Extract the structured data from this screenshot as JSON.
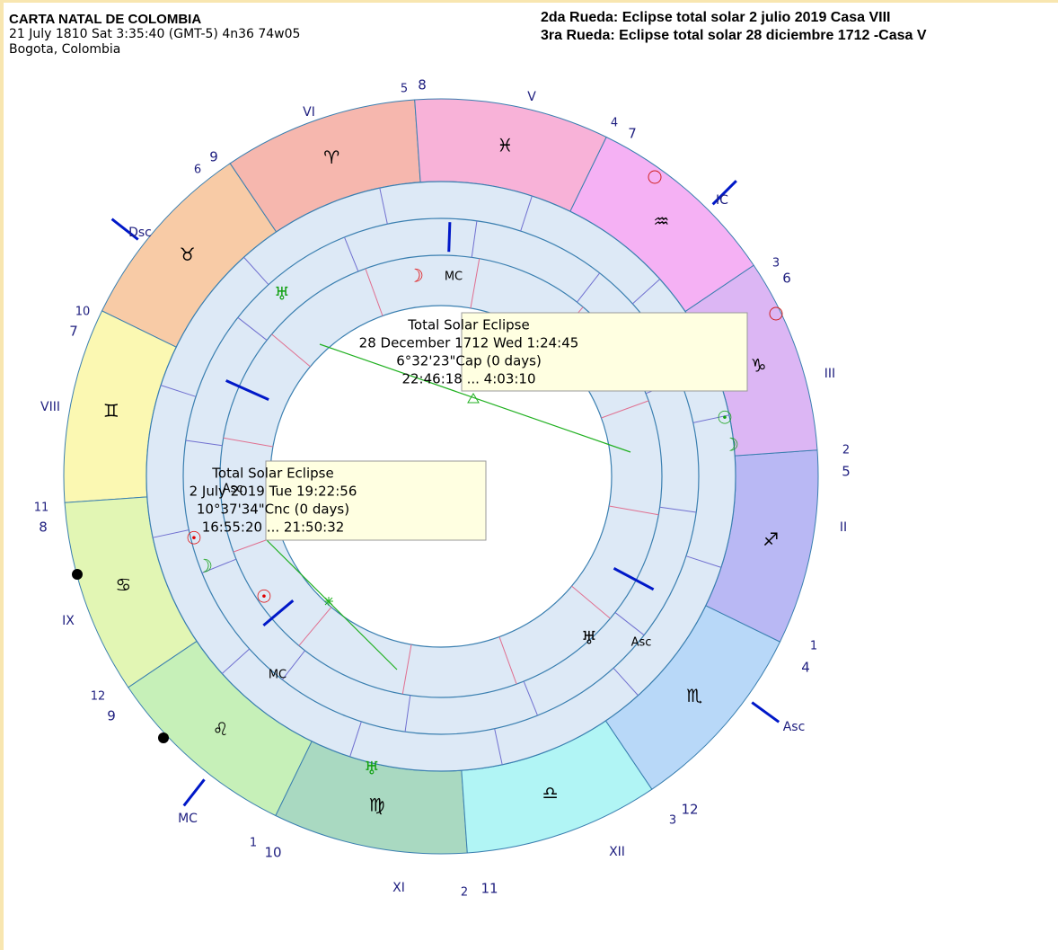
{
  "header": {
    "title": "CARTA NATAL DE COLOMBIA",
    "line1": "21 July 1810  Sat   3:35:40 (GMT-5) 4n36  74w05",
    "line2": "Bogota, Colombia",
    "wheel2": "2da Rueda: Eclipse total solar 2 julio 2019 Casa VIII",
    "wheel3": "3ra Rueda: Eclipse total solar 28 diciembre 1712 -Casa V"
  },
  "signs": [
    {
      "glyph": "♈",
      "color": "#f6b7ae"
    },
    {
      "glyph": "♉",
      "color": "#f8cba6"
    },
    {
      "glyph": "♊",
      "color": "#fbf8b2"
    },
    {
      "glyph": "♋",
      "color": "#e2f6b4"
    },
    {
      "glyph": "♌",
      "color": "#c6f0b8"
    },
    {
      "glyph": "♍",
      "color": "#a9d9c1"
    },
    {
      "glyph": "♎",
      "color": "#b1f5f5"
    },
    {
      "glyph": "♏",
      "color": "#b8d8f8"
    },
    {
      "glyph": "♐",
      "color": "#b9b8f4"
    },
    {
      "glyph": "♑",
      "color": "#dcb6f4"
    },
    {
      "glyph": "♒",
      "color": "#f5b1f4"
    },
    {
      "glyph": "♓",
      "color": "#f8b2d8"
    }
  ],
  "outer_labels": [
    "VI",
    "V",
    "IC",
    "III",
    "II",
    "Asc",
    "XII",
    "XI",
    "MC",
    "IX",
    "VIII",
    "Dsc"
  ],
  "house_numbers": [
    [
      "5",
      "8"
    ],
    [
      "4",
      "7"
    ],
    [
      "3",
      "6"
    ],
    [
      "2",
      "5"
    ],
    [
      "1",
      "4"
    ],
    [
      "3",
      "12"
    ],
    [
      "2",
      "11"
    ],
    [
      "1",
      "10"
    ],
    [
      "12",
      "9"
    ],
    [
      "11",
      "8"
    ],
    [
      "10",
      "7"
    ],
    [
      "6",
      "9"
    ]
  ],
  "planets": [
    {
      "glyph": "MC",
      "color": "#000000"
    },
    {
      "glyph": "☽",
      "color": "#e00000"
    },
    {
      "glyph": "♅",
      "color": "#10a010"
    },
    {
      "glyph": "Asc",
      "color": "#000000"
    },
    {
      "glyph": "☉",
      "color": "#e00000"
    },
    {
      "glyph": "☽",
      "color": "#10a010"
    },
    {
      "glyph": "☉",
      "color": "#e00000"
    },
    {
      "glyph": "MC",
      "color": "#000000"
    },
    {
      "glyph": "♅",
      "color": "#10a010"
    },
    {
      "glyph": "♅",
      "color": "#000000"
    },
    {
      "glyph": "Asc",
      "color": "#000000"
    },
    {
      "glyph": "☉",
      "color": "#10a010"
    },
    {
      "glyph": "☽",
      "color": "#10a010"
    }
  ],
  "tooltips": [
    {
      "lines": [
        "Total Solar Eclipse",
        "28 December 1712 Wed  1:24:45",
        "6°32'23\"Cap (0 days)",
        "22:46:18 ... 4:03:10"
      ]
    },
    {
      "lines": [
        "Total Solar Eclipse",
        "2 July 2019 Tue 19:22:56",
        "10°37'34\"Cnc (0 days)",
        "16:55:20 ... 21:50:32"
      ]
    }
  ]
}
